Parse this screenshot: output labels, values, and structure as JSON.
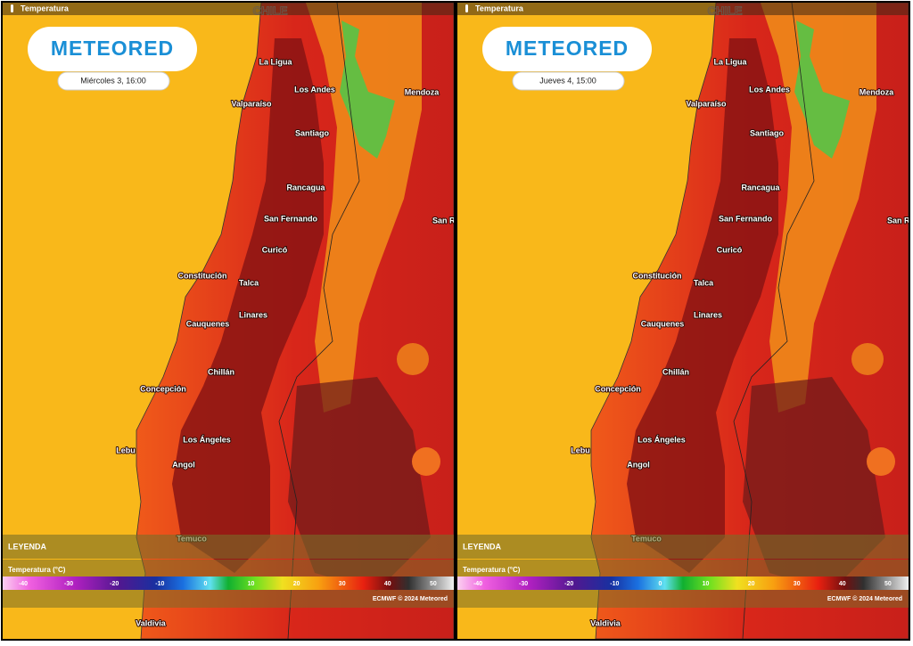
{
  "header": "Temperatura",
  "logo": "METEORED",
  "country": "CHILE",
  "cities": [
    "La Ligua",
    "Los Andes",
    "Mendoza",
    "Valparaíso",
    "Santiago",
    "Rancagua",
    "San Fernando",
    "San Rafael",
    "Curicó",
    "Constitución",
    "Talca",
    "Linares",
    "Cauquenes",
    "Chillán",
    "Concepción",
    "Los Ángeles",
    "Lebu",
    "Angol",
    "Temuco",
    "Valdivia"
  ],
  "legend": {
    "heading": "LEYENDA",
    "title": "Temperatura (°C)",
    "ticks": [
      -40,
      -30,
      -20,
      -10,
      0,
      10,
      20,
      30,
      40,
      50
    ],
    "credit": "ECMWF © 2024 Meteored"
  },
  "panels": [
    {
      "date": "Miércoles 3, 16:00"
    },
    {
      "date": "Jueves 4, 15:00"
    }
  ]
}
